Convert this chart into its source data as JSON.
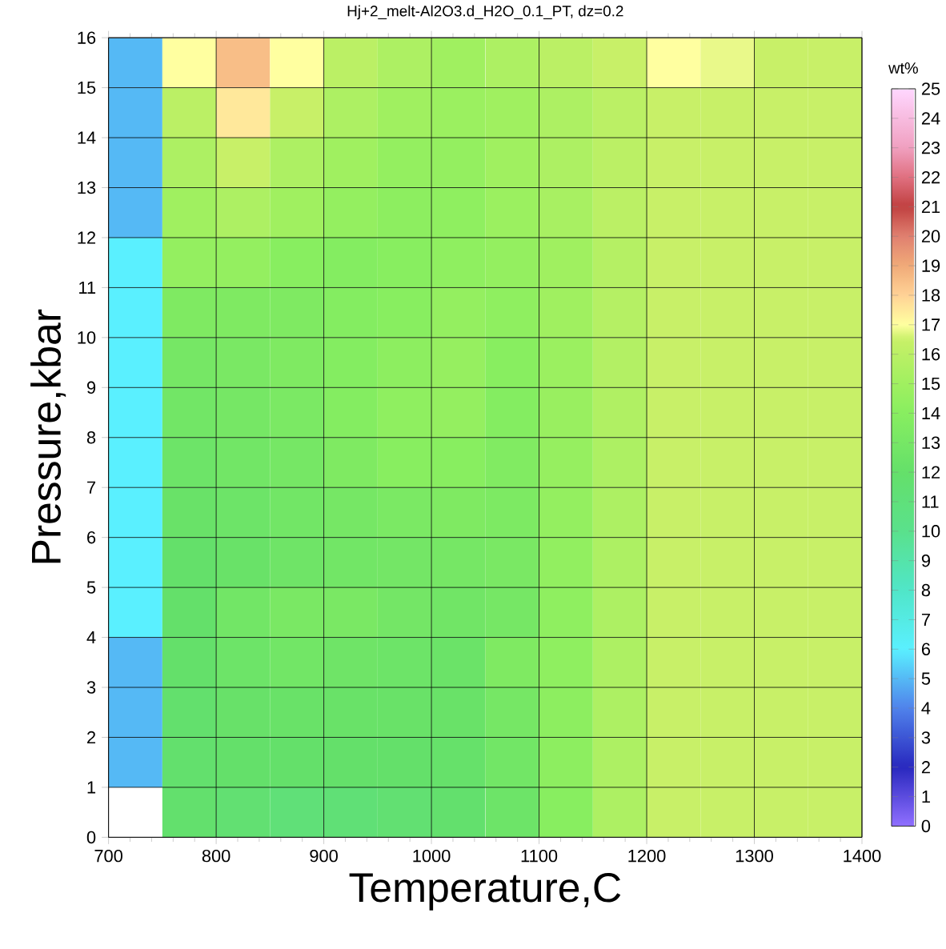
{
  "chart_data": {
    "type": "heatmap",
    "title": "Hj+2_melt-Al2O3.d_H2O_0.1_PT, dz=0.2",
    "xlabel": "Temperature,C",
    "ylabel": "Pressure,kbar",
    "clabel": "wt%",
    "x": [
      725,
      775,
      825,
      875,
      925,
      975,
      1025,
      1075,
      1125,
      1175,
      1225,
      1275,
      1325,
      1375
    ],
    "y": [
      15.5,
      14.5,
      13.5,
      12.5,
      11.5,
      10.5,
      9.5,
      8.5,
      7.5,
      6.5,
      5.5,
      4.5,
      3.5,
      2.5,
      1.5,
      0.5
    ],
    "cells": [
      [
        5,
        17,
        18.5,
        17,
        16,
        15.5,
        15,
        15.5,
        16,
        16.5,
        17,
        16.8,
        16.5,
        16.5
      ],
      [
        5,
        16,
        17.5,
        16.5,
        15.5,
        15,
        14.8,
        15,
        15.5,
        16,
        16.5,
        16.5,
        16.5,
        16.5
      ],
      [
        5,
        15.5,
        16.5,
        15.5,
        15,
        14.5,
        14.5,
        15,
        15.5,
        16,
        16.5,
        16.5,
        16.5,
        16.5
      ],
      [
        5,
        15,
        15.5,
        15,
        14.5,
        14.2,
        14.3,
        14.8,
        15.3,
        16,
        16.5,
        16.5,
        16.5,
        16.5
      ],
      [
        6,
        14.5,
        14.5,
        14,
        13.8,
        14,
        14.3,
        14.5,
        15,
        15.8,
        16.5,
        16.5,
        16.5,
        16.5
      ],
      [
        6,
        13.5,
        13.5,
        13.5,
        13.8,
        14,
        14.5,
        14.3,
        15,
        15.8,
        16.5,
        16.5,
        16.5,
        16.5
      ],
      [
        6,
        13,
        13.2,
        13.5,
        13.8,
        14.2,
        14.6,
        14,
        14.8,
        15.7,
        16.5,
        16.5,
        16.5,
        16.5
      ],
      [
        6,
        12.8,
        13,
        13.3,
        13.8,
        14.3,
        14.5,
        13.8,
        14.7,
        15.6,
        16.5,
        16.5,
        16.5,
        16.5
      ],
      [
        6,
        12.5,
        12.8,
        13,
        13.5,
        14,
        14,
        13.6,
        14.6,
        15.5,
        16.5,
        16.5,
        16.5,
        16.5
      ],
      [
        6,
        12.3,
        12.5,
        12.8,
        13,
        13.3,
        13.5,
        13.4,
        14.5,
        15.5,
        16.5,
        16.5,
        16.5,
        16.5
      ],
      [
        6,
        12,
        12.3,
        12.6,
        12.8,
        12.9,
        13,
        13.2,
        14.4,
        15.5,
        16.5,
        16.5,
        16.5,
        16.5
      ],
      [
        6,
        12,
        12.8,
        13.2,
        13.2,
        12.9,
        12.7,
        13,
        14.3,
        15.5,
        16.5,
        16.5,
        16.5,
        16.5
      ],
      [
        5,
        12,
        12.5,
        12.8,
        12.6,
        12.5,
        12.4,
        13.5,
        14.3,
        15.5,
        16.5,
        16.5,
        16.5,
        16.5
      ],
      [
        5,
        11.8,
        12.2,
        12.3,
        12.3,
        12.3,
        12.3,
        13,
        14.2,
        15.5,
        16.5,
        16.5,
        16.5,
        16.5
      ],
      [
        5,
        11.8,
        12,
        12,
        12,
        12,
        12.1,
        12.8,
        14.2,
        15.5,
        16.5,
        16.5,
        16.5,
        16.5
      ],
      [
        null,
        11.8,
        11.5,
        11.2,
        11.3,
        11.5,
        11.8,
        12.5,
        14,
        15.5,
        16.5,
        16.5,
        16.5,
        16.5
      ]
    ],
    "xlim": [
      700,
      1400
    ],
    "ylim": [
      0,
      16
    ],
    "xticks": [
      700,
      800,
      900,
      1000,
      1100,
      1200,
      1300,
      1400
    ],
    "yticks": [
      0,
      1,
      2,
      3,
      4,
      5,
      6,
      7,
      8,
      9,
      10,
      11,
      12,
      13,
      14,
      15,
      16
    ],
    "clim": [
      0,
      25
    ],
    "cticks": [
      0,
      1,
      2,
      3,
      4,
      5,
      6,
      7,
      8,
      9,
      10,
      11,
      12,
      13,
      14,
      15,
      16,
      17,
      18,
      19,
      20,
      21,
      22,
      23,
      24,
      25
    ],
    "grid": true
  }
}
